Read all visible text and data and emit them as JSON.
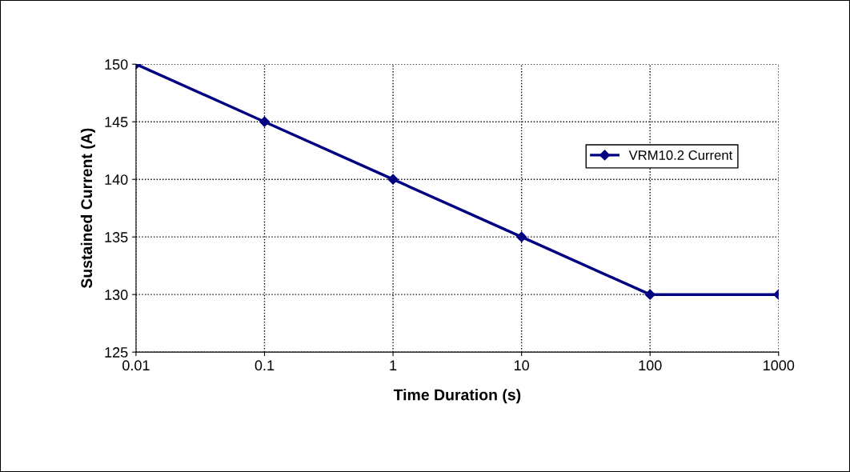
{
  "chart_data": {
    "type": "line",
    "xlabel": "Time Duration (s)",
    "ylabel": "Sustained Current (A)",
    "x": [
      0.01,
      0.1,
      1,
      10,
      100,
      1000
    ],
    "series": [
      {
        "name": "VRM10.2 Current",
        "color": "#000080",
        "values": [
          150,
          145,
          140,
          135,
          130,
          130
        ]
      }
    ],
    "log": "x",
    "xlim": [
      0.01,
      1000
    ],
    "xticks": [
      0.01,
      0.1,
      1,
      10,
      100,
      1000
    ],
    "ylim": [
      125,
      150
    ],
    "yticks": [
      125,
      130,
      135,
      140,
      145,
      150
    ],
    "grid": true,
    "legend": "right",
    "marker": "diamond",
    "line_style": "solid"
  }
}
